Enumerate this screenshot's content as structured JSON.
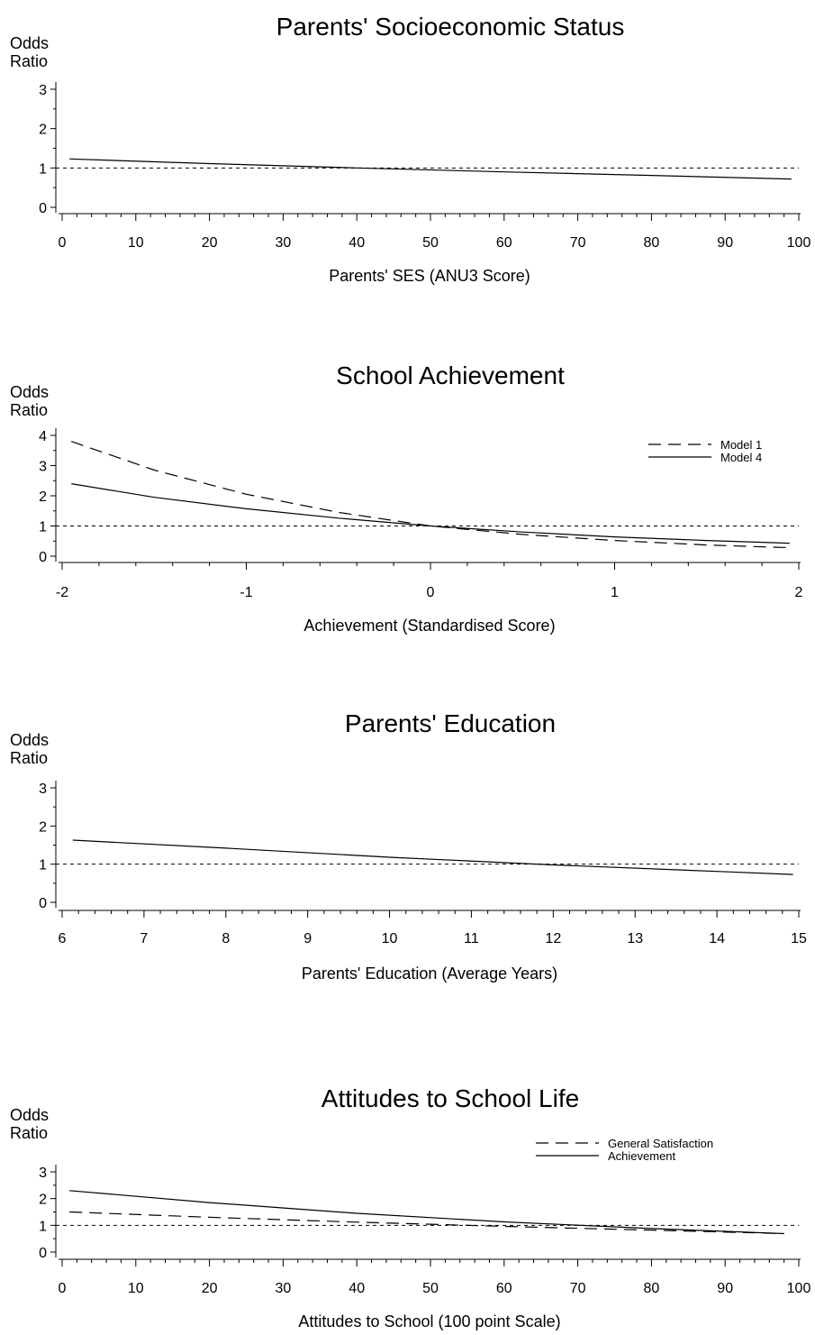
{
  "chart_data": [
    {
      "type": "line",
      "title": "Parents' Socioeconomic Status",
      "ylabel_line1": "Odds",
      "ylabel_line2": "Ratio",
      "xlabel": "Parents' SES (ANU3 Score)",
      "xlim": [
        0,
        100
      ],
      "ylim": [
        0,
        3
      ],
      "xticks": [
        0,
        10,
        20,
        30,
        40,
        50,
        60,
        70,
        80,
        90,
        100
      ],
      "xtick_labels": [
        "0",
        "10",
        "20",
        "30",
        "40",
        "50",
        "60",
        "70",
        "80",
        "90",
        "100"
      ],
      "yticks": [
        0,
        1,
        2,
        3
      ],
      "ytick_labels": [
        "0",
        "1",
        "2",
        "3"
      ],
      "reference_line": 1,
      "legend": [],
      "series": [
        {
          "style": "solid",
          "x": [
            1,
            20,
            40,
            60,
            80,
            99
          ],
          "y": [
            1.23,
            1.11,
            1.0,
            0.9,
            0.81,
            0.72
          ]
        }
      ]
    },
    {
      "type": "line",
      "title": "School Achievement",
      "ylabel_line1": "Odds",
      "ylabel_line2": "Ratio",
      "xlabel": "Achievement (Standardised Score)",
      "xlim": [
        -2,
        2
      ],
      "ylim": [
        0,
        4
      ],
      "xticks": [
        -2,
        -1,
        0,
        1,
        2
      ],
      "xtick_labels": [
        "-2",
        "-1",
        "0",
        "1",
        "2"
      ],
      "yticks": [
        0,
        1,
        2,
        3,
        4
      ],
      "ytick_labels": [
        "0",
        "1",
        "2",
        "3",
        "4"
      ],
      "reference_line": 1,
      "legend_position": "top-right",
      "legend": [
        {
          "label": "Model 1",
          "style": "dashed"
        },
        {
          "label": "Model 4",
          "style": "solid"
        }
      ],
      "series": [
        {
          "name": "Model 1",
          "style": "dashed",
          "x": [
            -1.95,
            -1.5,
            -1.0,
            -0.5,
            0,
            0.5,
            1.0,
            1.5,
            1.95
          ],
          "y": [
            3.8,
            2.85,
            2.05,
            1.45,
            1.0,
            0.72,
            0.52,
            0.37,
            0.28
          ]
        },
        {
          "name": "Model 4",
          "style": "solid",
          "x": [
            -1.95,
            -1.5,
            -1.0,
            -0.5,
            0,
            0.5,
            1.0,
            1.5,
            1.95
          ],
          "y": [
            2.4,
            1.95,
            1.57,
            1.26,
            1.0,
            0.8,
            0.64,
            0.52,
            0.43
          ]
        }
      ]
    },
    {
      "type": "line",
      "title": "Parents' Education",
      "ylabel_line1": "Odds",
      "ylabel_line2": "Ratio",
      "xlabel": "Parents' Education (Average Years)",
      "xlim": [
        6,
        15
      ],
      "ylim": [
        0,
        3
      ],
      "xticks": [
        6,
        7,
        8,
        9,
        10,
        11,
        12,
        13,
        14,
        15
      ],
      "xtick_labels": [
        "6",
        "7",
        "8",
        "9",
        "10",
        "11",
        "12",
        "13",
        "14",
        "15"
      ],
      "yticks": [
        0,
        1,
        2,
        3
      ],
      "ytick_labels": [
        "0",
        "1",
        "2",
        "3"
      ],
      "reference_line": 1,
      "legend": [],
      "series": [
        {
          "style": "solid",
          "x": [
            6.13,
            8,
            10,
            12,
            14,
            14.93
          ],
          "y": [
            1.63,
            1.42,
            1.18,
            0.98,
            0.81,
            0.73
          ]
        }
      ]
    },
    {
      "type": "line",
      "title": "Attitudes to School Life",
      "ylabel_line1": "Odds",
      "ylabel_line2": "Ratio",
      "xlabel": "Attitudes to School (100 point Scale)",
      "xlim": [
        0,
        100
      ],
      "ylim": [
        0,
        3
      ],
      "xticks": [
        0,
        10,
        20,
        30,
        40,
        50,
        60,
        70,
        80,
        90,
        100
      ],
      "xtick_labels": [
        "0",
        "10",
        "20",
        "30",
        "40",
        "50",
        "60",
        "70",
        "80",
        "90",
        "100"
      ],
      "yticks": [
        0,
        1,
        2,
        3
      ],
      "ytick_labels": [
        "0",
        "1",
        "2",
        "3"
      ],
      "reference_line": 1,
      "legend_position": "top-right",
      "legend": [
        {
          "label": "General Satisfaction",
          "style": "dashed"
        },
        {
          "label": "Achievement",
          "style": "solid"
        }
      ],
      "series": [
        {
          "name": "General Satisfaction",
          "style": "dashed",
          "x": [
            1,
            20,
            40,
            60,
            80,
            98
          ],
          "y": [
            1.5,
            1.3,
            1.12,
            0.96,
            0.82,
            0.69
          ]
        },
        {
          "name": "Achievement",
          "style": "solid",
          "x": [
            1,
            20,
            40,
            60,
            80,
            98
          ],
          "y": [
            2.3,
            1.85,
            1.45,
            1.13,
            0.88,
            0.69
          ]
        }
      ]
    }
  ]
}
